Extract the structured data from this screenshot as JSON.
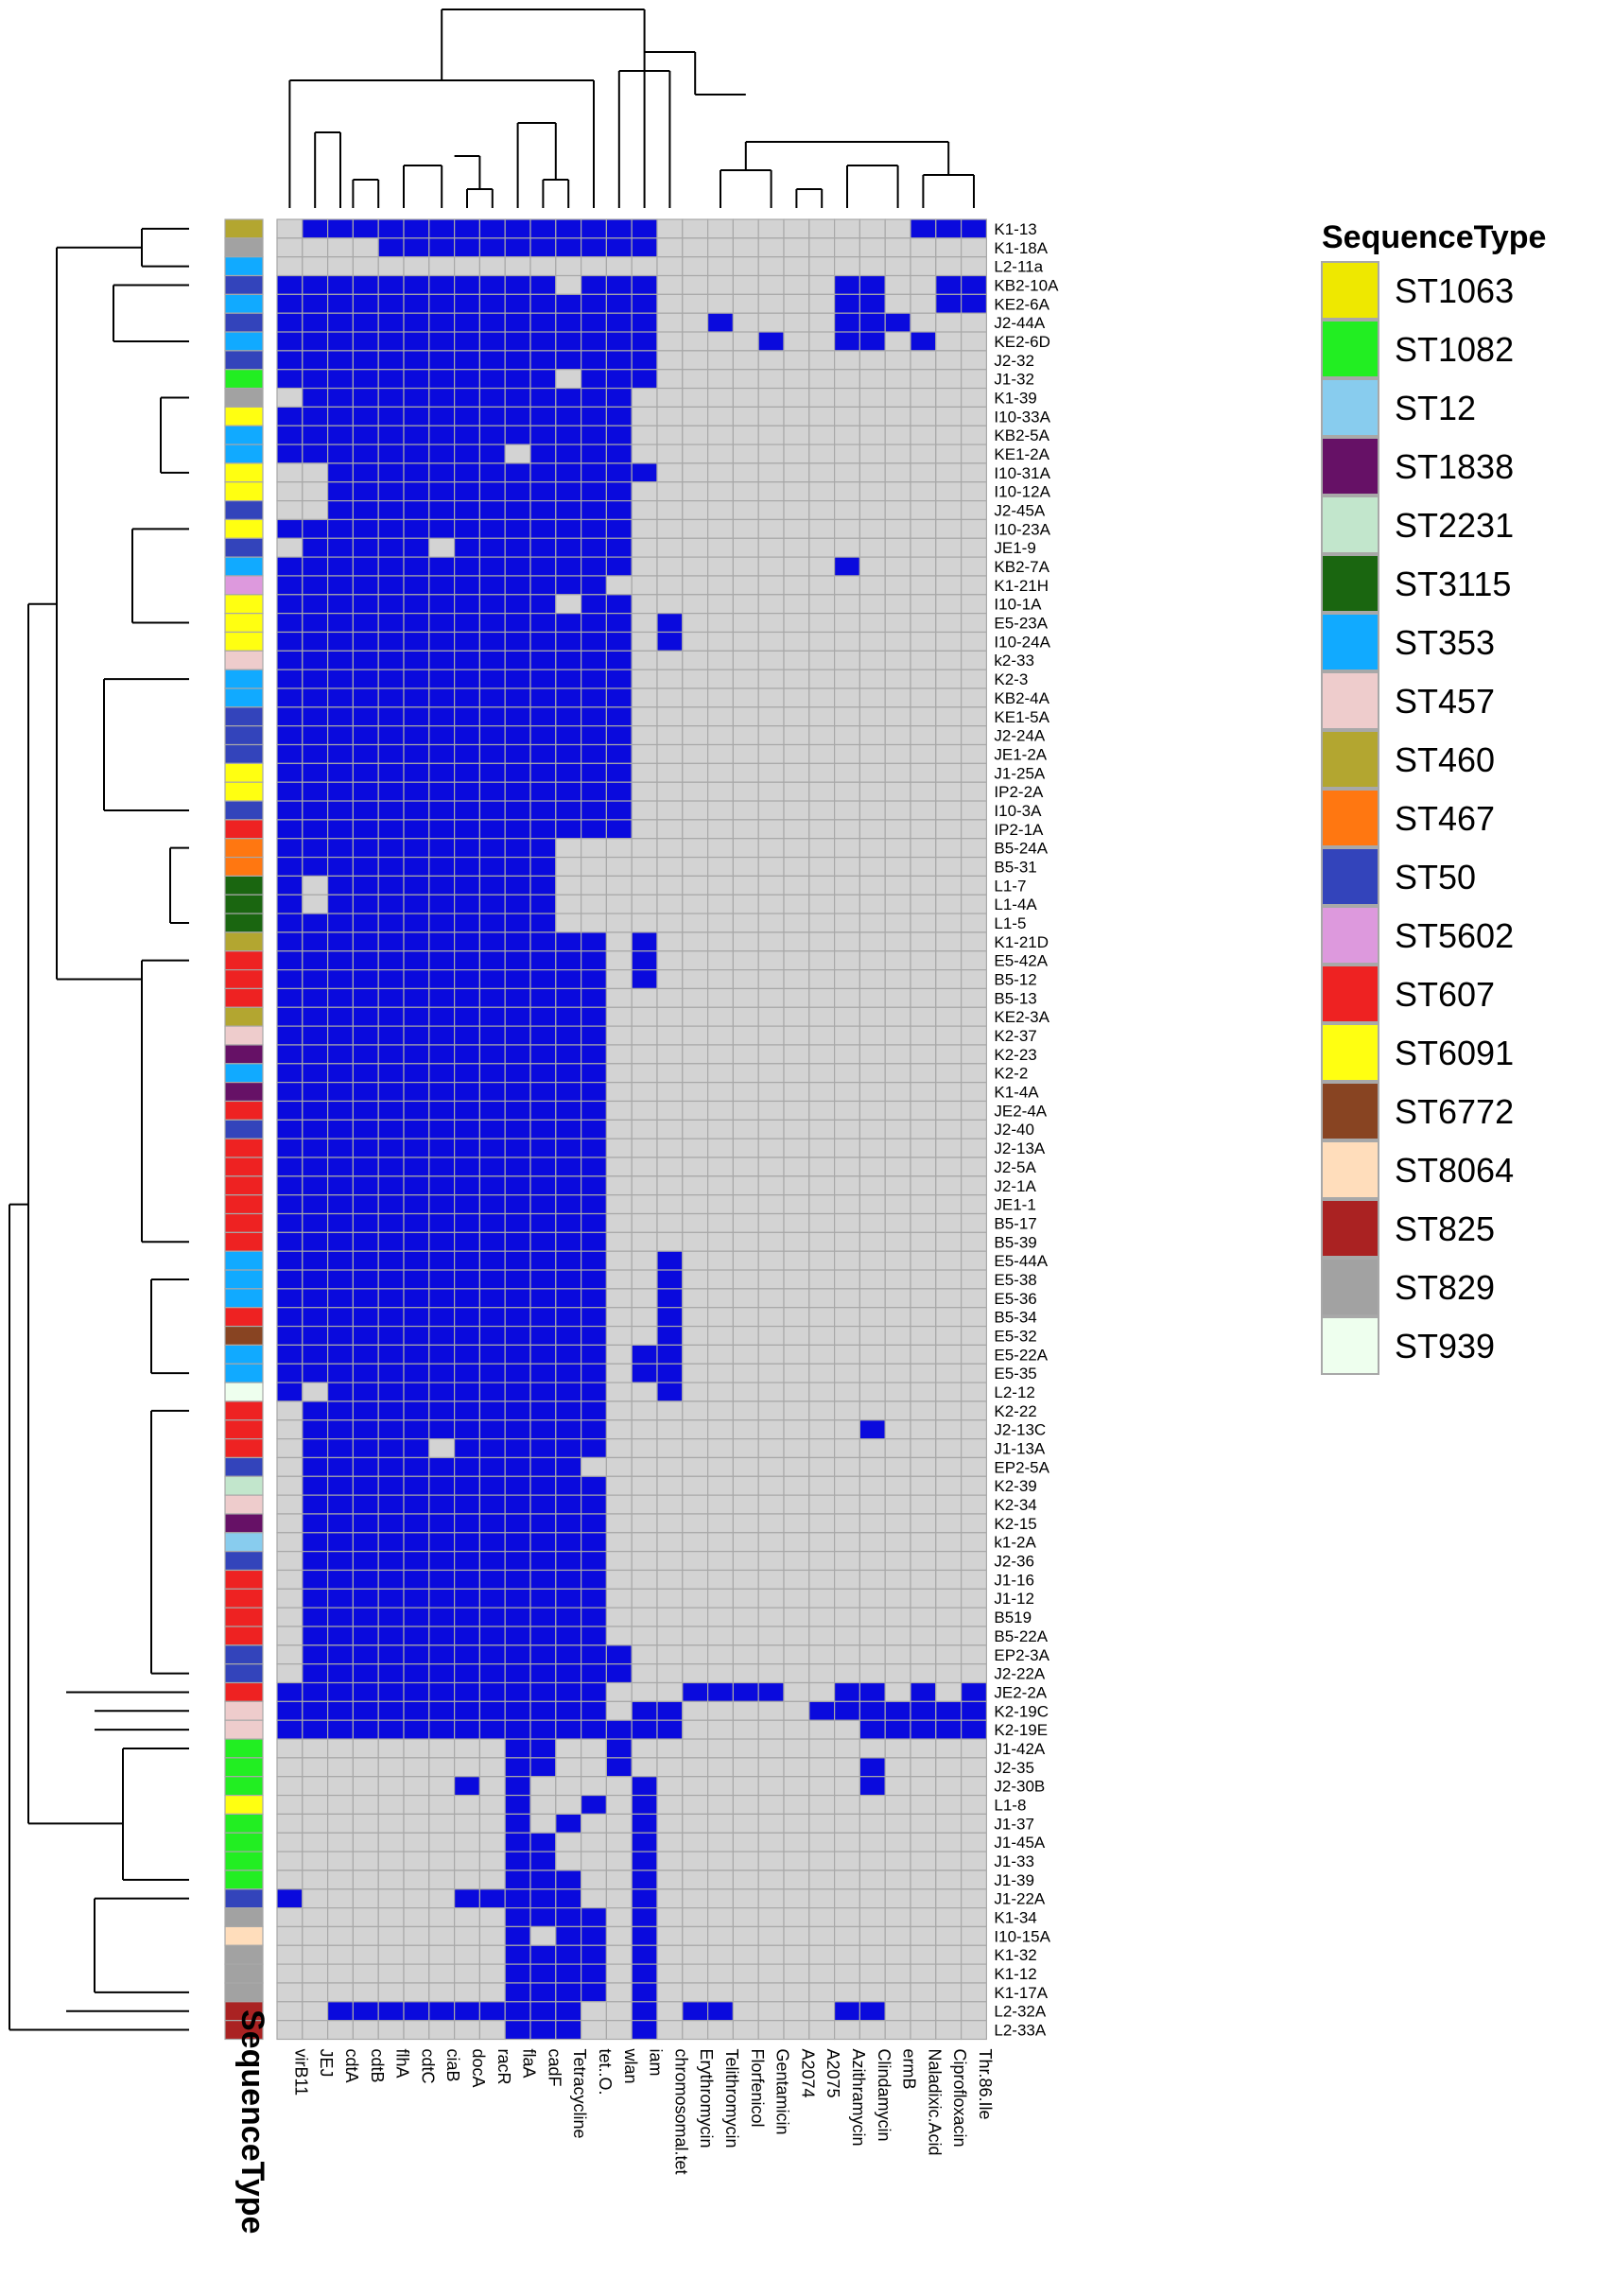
{
  "chart_data": {
    "type": "heatmap",
    "annotation_title": "SequenceType",
    "legend": {
      "title": "SequenceType",
      "entries": [
        {
          "label": "ST1063",
          "color": "#EEE800"
        },
        {
          "label": "ST1082",
          "color": "#22EE22"
        },
        {
          "label": "ST12",
          "color": "#88CCEE"
        },
        {
          "label": "ST1838",
          "color": "#661166"
        },
        {
          "label": "ST2231",
          "color": "#C2E6CC"
        },
        {
          "label": "ST3115",
          "color": "#1A6610"
        },
        {
          "label": "ST353",
          "color": "#11AAFF"
        },
        {
          "label": "ST457",
          "color": "#EECCCC"
        },
        {
          "label": "ST460",
          "color": "#B3A630"
        },
        {
          "label": "ST467",
          "color": "#FF7711"
        },
        {
          "label": "ST50",
          "color": "#3344BB"
        },
        {
          "label": "ST5602",
          "color": "#DD99DD"
        },
        {
          "label": "ST607",
          "color": "#EE2222"
        },
        {
          "label": "ST6091",
          "color": "#FFFF11"
        },
        {
          "label": "ST6772",
          "color": "#884422"
        },
        {
          "label": "ST8064",
          "color": "#FFDDBB"
        },
        {
          "label": "ST825",
          "color": "#AA2222"
        },
        {
          "label": "ST829",
          "color": "#A2A2A2"
        },
        {
          "label": "ST939",
          "color": "#EEFFEE"
        }
      ]
    },
    "colors": {
      "present": "#0A0ADD",
      "absent": "#D3D3D3",
      "grid": "#A8A8A8"
    },
    "columns": [
      "virB11",
      "JEJ",
      "cdtA",
      "cdtB",
      "flhA",
      "cdtC",
      "ciaB",
      "docA",
      "racR",
      "flaA",
      "cadF",
      "Tetracycline",
      "tet..O.",
      "wlan",
      "iam",
      "chromosomal.tet",
      "Erythromycin",
      "Telithromycin",
      "Florfenicol",
      "Gentamicin",
      "A2074",
      "A2075",
      "Azithramycin",
      "Clindamycin",
      "ermB",
      "Naladixic.Acid",
      "Ciprofloxacin",
      "Thr.86.Ile"
    ],
    "rows": [
      {
        "label": "K1-13",
        "st": "ST460",
        "v": "0111111111111110000000000111"
      },
      {
        "label": "K1-18A",
        "st": "ST829",
        "v": "0000111111111110000000000000"
      },
      {
        "label": "L2-11a",
        "st": "ST353",
        "v": "0000000000000000000000000000"
      },
      {
        "label": "KB2-10A",
        "st": "ST50",
        "v": "1111111111101110000000110011"
      },
      {
        "label": "KE2-6A",
        "st": "ST353",
        "v": "1111111111111110000000110011"
      },
      {
        "label": "J2-44A",
        "st": "ST50",
        "v": "1111111111111110010000111000"
      },
      {
        "label": "KE2-6D",
        "st": "ST353",
        "v": "1111111111111110000100110100"
      },
      {
        "label": "J2-32",
        "st": "ST50",
        "v": "1111111111111110000000000000"
      },
      {
        "label": "J1-32",
        "st": "ST1082",
        "v": "1111111111101110000000000000"
      },
      {
        "label": "K1-39",
        "st": "ST829",
        "v": "0111111111111100000000000000"
      },
      {
        "label": "I10-33A",
        "st": "ST6091",
        "v": "1111111111111100000000000000"
      },
      {
        "label": "KB2-5A",
        "st": "ST353",
        "v": "1111111111111100000000000000"
      },
      {
        "label": "KE1-2A",
        "st": "ST353",
        "v": "1111111110111100000000000000"
      },
      {
        "label": "I10-31A",
        "st": "ST6091",
        "v": "0011111111111110000000000000"
      },
      {
        "label": "I10-12A",
        "st": "ST6091",
        "v": "0011111111111100000000000000"
      },
      {
        "label": "J2-45A",
        "st": "ST50",
        "v": "0011111111111100000000000000"
      },
      {
        "label": "I10-23A",
        "st": "ST6091",
        "v": "1111111111111100000000000000"
      },
      {
        "label": "JE1-9",
        "st": "ST50",
        "v": "0111110111111100000000000000"
      },
      {
        "label": "KB2-7A",
        "st": "ST353",
        "v": "1111111111111100000000100000"
      },
      {
        "label": "K1-21H",
        "st": "ST5602",
        "v": "1111111111111000000000000000"
      },
      {
        "label": "I10-1A",
        "st": "ST6091",
        "v": "1111111111101100000000000000"
      },
      {
        "label": "E5-23A",
        "st": "ST6091",
        "v": "1111111111111101000000000000"
      },
      {
        "label": "I10-24A",
        "st": "ST6091",
        "v": "1111111111111101000000000000"
      },
      {
        "label": "k2-33",
        "st": "ST457",
        "v": "1111111111111100000000000000"
      },
      {
        "label": "K2-3",
        "st": "ST353",
        "v": "1111111111111100000000000000"
      },
      {
        "label": "KB2-4A",
        "st": "ST353",
        "v": "1111111111111100000000000000"
      },
      {
        "label": "KE1-5A",
        "st": "ST50",
        "v": "1111111111111100000000000000"
      },
      {
        "label": "J2-24A",
        "st": "ST50",
        "v": "1111111111111100000000000000"
      },
      {
        "label": "JE1-2A",
        "st": "ST50",
        "v": "1111111111111100000000000000"
      },
      {
        "label": "J1-25A",
        "st": "ST6091",
        "v": "1111111111111100000000000000"
      },
      {
        "label": "IP2-2A",
        "st": "ST6091",
        "v": "1111111111111100000000000000"
      },
      {
        "label": "I10-3A",
        "st": "ST50",
        "v": "1111111111111100000000000000"
      },
      {
        "label": "IP2-1A",
        "st": "ST607",
        "v": "1111111111111100000000000000"
      },
      {
        "label": "B5-24A",
        "st": "ST467",
        "v": "1111111111100000000000000000"
      },
      {
        "label": "B5-31",
        "st": "ST467",
        "v": "1111111111100000000000000000"
      },
      {
        "label": "L1-7",
        "st": "ST3115",
        "v": "1011111111100000000000000000"
      },
      {
        "label": "L1-4A",
        "st": "ST3115",
        "v": "1011111111100000000000000000"
      },
      {
        "label": "L1-5",
        "st": "ST3115",
        "v": "1111111111100000000000000000"
      },
      {
        "label": "K1-21D",
        "st": "ST460",
        "v": "1111111111111010000000000000"
      },
      {
        "label": "E5-42A",
        "st": "ST607",
        "v": "1111111111111010000000000000"
      },
      {
        "label": "B5-12",
        "st": "ST607",
        "v": "1111111111111010000000000000"
      },
      {
        "label": "B5-13",
        "st": "ST607",
        "v": "1111111111111000000000000000"
      },
      {
        "label": "KE2-3A",
        "st": "ST460",
        "v": "1111111111111000000000000000"
      },
      {
        "label": "K2-37",
        "st": "ST457",
        "v": "1111111111111000000000000000"
      },
      {
        "label": "K2-23",
        "st": "ST1838",
        "v": "1111111111111000000000000000"
      },
      {
        "label": "K2-2",
        "st": "ST353",
        "v": "1111111111111000000000000000"
      },
      {
        "label": "K1-4A",
        "st": "ST1838",
        "v": "1111111111111000000000000000"
      },
      {
        "label": "JE2-4A",
        "st": "ST607",
        "v": "1111111111111000000000000000"
      },
      {
        "label": "J2-40",
        "st": "ST50",
        "v": "1111111111111000000000000000"
      },
      {
        "label": "J2-13A",
        "st": "ST607",
        "v": "1111111111111000000000000000"
      },
      {
        "label": "J2-5A",
        "st": "ST607",
        "v": "1111111111111000000000000000"
      },
      {
        "label": "J2-1A",
        "st": "ST607",
        "v": "1111111111111000000000000000"
      },
      {
        "label": "JE1-1",
        "st": "ST607",
        "v": "1111111111111000000000000000"
      },
      {
        "label": "B5-17",
        "st": "ST607",
        "v": "1111111111111000000000000000"
      },
      {
        "label": "B5-39",
        "st": "ST607",
        "v": "1111111111111000000000000000"
      },
      {
        "label": "E5-44A",
        "st": "ST353",
        "v": "1111111111111001000000000000"
      },
      {
        "label": "E5-38",
        "st": "ST353",
        "v": "1111111111111001000000000000"
      },
      {
        "label": "E5-36",
        "st": "ST353",
        "v": "1111111111111001000000000000"
      },
      {
        "label": "B5-34",
        "st": "ST607",
        "v": "1111111111111001000000000000"
      },
      {
        "label": "E5-32",
        "st": "ST6772",
        "v": "1111111111111001000000000000"
      },
      {
        "label": "E5-22A",
        "st": "ST353",
        "v": "1111111111111011000000000000"
      },
      {
        "label": "E5-35",
        "st": "ST353",
        "v": "1111111111111011000000000000"
      },
      {
        "label": "L2-12",
        "st": "ST939",
        "v": "1011111111111001000000000000"
      },
      {
        "label": "K2-22",
        "st": "ST607",
        "v": "0111111111111000000000000000"
      },
      {
        "label": "J2-13C",
        "st": "ST607",
        "v": "0111111111111000000000010000"
      },
      {
        "label": "J1-13A",
        "st": "ST607",
        "v": "0111110111111000000000000000"
      },
      {
        "label": "EP2-5A",
        "st": "ST50",
        "v": "0111111111110000000000000000"
      },
      {
        "label": "K2-39",
        "st": "ST2231",
        "v": "0111111111111000000000000000"
      },
      {
        "label": "K2-34",
        "st": "ST457",
        "v": "0111111111111000000000000000"
      },
      {
        "label": "K2-15",
        "st": "ST1838",
        "v": "0111111111111000000000000000"
      },
      {
        "label": "k1-2A",
        "st": "ST12",
        "v": "0111111111111000000000000000"
      },
      {
        "label": "J2-36",
        "st": "ST50",
        "v": "0111111111111000000000000000"
      },
      {
        "label": "J1-16",
        "st": "ST607",
        "v": "0111111111111000000000000000"
      },
      {
        "label": "J1-12",
        "st": "ST607",
        "v": "0111111111111000000000000000"
      },
      {
        "label": "B519",
        "st": "ST607",
        "v": "0111111111111000000000000000"
      },
      {
        "label": "B5-22A",
        "st": "ST607",
        "v": "0111111111111000000000000000"
      },
      {
        "label": "EP2-3A",
        "st": "ST50",
        "v": "0111111111111100000000000000"
      },
      {
        "label": "J2-22A",
        "st": "ST50",
        "v": "0111111111111100000000000000"
      },
      {
        "label": "JE2-2A",
        "st": "ST607",
        "v": "1111111111111000111100110101"
      },
      {
        "label": "K2-19C",
        "st": "ST457",
        "v": "1111111111111011000001111111"
      },
      {
        "label": "K2-19E",
        "st": "ST457",
        "v": "1111111111111111000000011111"
      },
      {
        "label": "J1-42A",
        "st": "ST1082",
        "v": "0000000001100100000000000000"
      },
      {
        "label": "J2-35",
        "st": "ST1082",
        "v": "0000000001100100000000010000"
      },
      {
        "label": "J2-30B",
        "st": "ST1082",
        "v": "0000000101000010000000010000"
      },
      {
        "label": "L1-8",
        "st": "ST6091",
        "v": "0000000001001010000000000000"
      },
      {
        "label": "J1-37",
        "st": "ST1082",
        "v": "0000000001010010000000000000"
      },
      {
        "label": "J1-45A",
        "st": "ST1082",
        "v": "0000000001100010000000000000"
      },
      {
        "label": "J1-33",
        "st": "ST1082",
        "v": "0000000001100010000000000000"
      },
      {
        "label": "J1-39",
        "st": "ST1082",
        "v": "0000000001110010000000000000"
      },
      {
        "label": "J1-22A",
        "st": "ST50",
        "v": "1000000111110010000000000000"
      },
      {
        "label": "K1-34",
        "st": "ST829",
        "v": "0000000001111010000000000000"
      },
      {
        "label": "I10-15A",
        "st": "ST8064",
        "v": "0000000001011010000000000000"
      },
      {
        "label": "K1-32",
        "st": "ST829",
        "v": "0000000001111010000000000000"
      },
      {
        "label": "K1-12",
        "st": "ST829",
        "v": "0000000001111010000000000000"
      },
      {
        "label": "K1-17A",
        "st": "ST829",
        "v": "0000000001111010000000000000"
      },
      {
        "label": "L2-32A",
        "st": "ST825",
        "v": "0011111111110010110000110000"
      },
      {
        "label": "L2-33A",
        "st": "ST825",
        "v": "0000000001110010000000000000"
      }
    ]
  }
}
